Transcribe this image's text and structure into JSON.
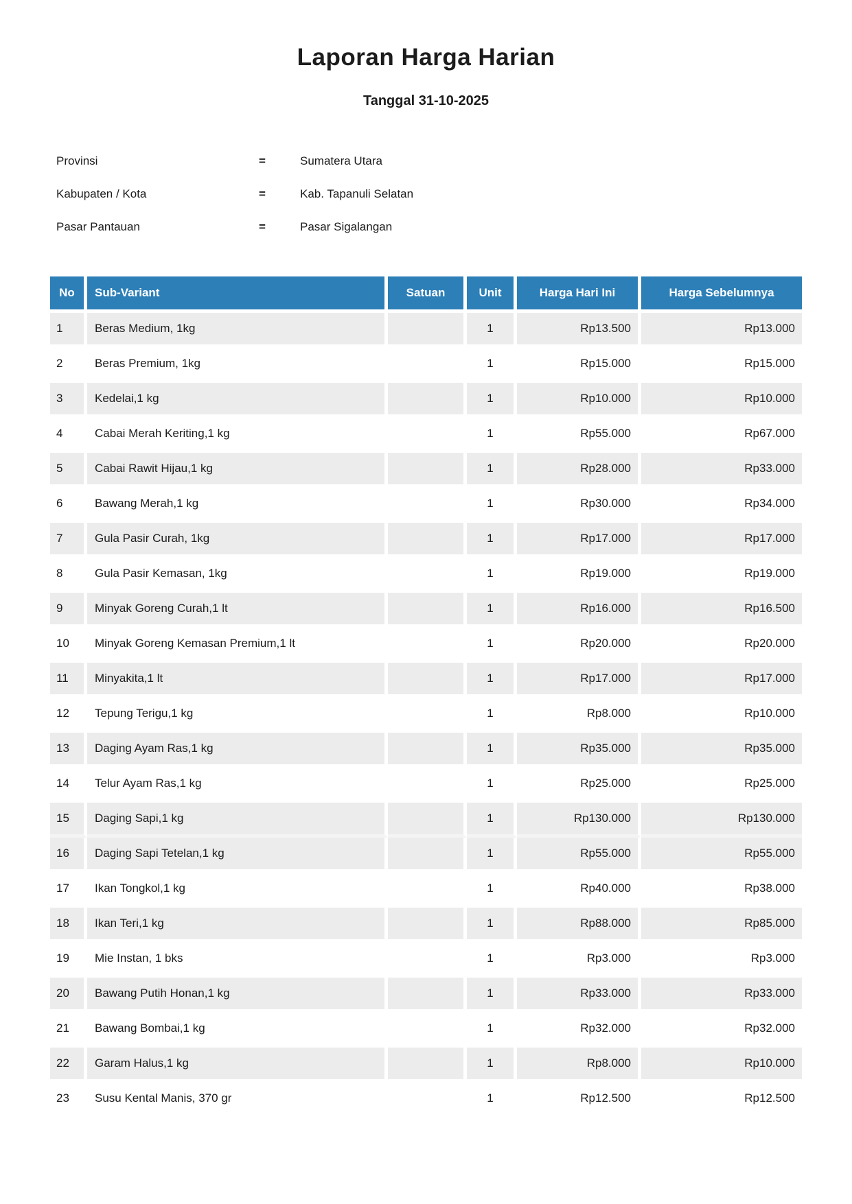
{
  "page": {
    "title": "Laporan Harga Harian",
    "subtitle": "Tanggal 31-10-2025"
  },
  "meta": {
    "separator": "=",
    "rows": [
      {
        "label": "Provinsi",
        "value": "Sumatera Utara"
      },
      {
        "label": "Kabupaten / Kota",
        "value": "Kab. Tapanuli Selatan"
      },
      {
        "label": "Pasar Pantauan",
        "value": "Pasar Sigalangan"
      }
    ]
  },
  "colors": {
    "header_bg": "#2d7fb8",
    "row_shade": "#ececec",
    "header_text": "#ffffff"
  },
  "table": {
    "columns": [
      "No",
      "Sub-Variant",
      "Satuan",
      "Unit",
      "Harga Hari Ini",
      "Harga Sebelumnya"
    ],
    "rows": [
      {
        "no": "1",
        "sub_variant": "Beras Medium, 1kg",
        "satuan": "",
        "unit": "1",
        "harga_hari_ini": "Rp13.500",
        "harga_sebelumnya": "Rp13.000",
        "shaded": true
      },
      {
        "no": "2",
        "sub_variant": "Beras Premium, 1kg",
        "satuan": "",
        "unit": "1",
        "harga_hari_ini": "Rp15.000",
        "harga_sebelumnya": "Rp15.000",
        "shaded": false
      },
      {
        "no": "3",
        "sub_variant": "Kedelai,1 kg",
        "satuan": "",
        "unit": "1",
        "harga_hari_ini": "Rp10.000",
        "harga_sebelumnya": "Rp10.000",
        "shaded": true
      },
      {
        "no": "4",
        "sub_variant": "Cabai Merah Keriting,1 kg",
        "satuan": "",
        "unit": "1",
        "harga_hari_ini": "Rp55.000",
        "harga_sebelumnya": "Rp67.000",
        "shaded": false
      },
      {
        "no": "5",
        "sub_variant": "Cabai Rawit Hijau,1 kg",
        "satuan": "",
        "unit": "1",
        "harga_hari_ini": "Rp28.000",
        "harga_sebelumnya": "Rp33.000",
        "shaded": true
      },
      {
        "no": "6",
        "sub_variant": "Bawang Merah,1 kg",
        "satuan": "",
        "unit": "1",
        "harga_hari_ini": "Rp30.000",
        "harga_sebelumnya": "Rp34.000",
        "shaded": false
      },
      {
        "no": "7",
        "sub_variant": "Gula Pasir Curah, 1kg",
        "satuan": "",
        "unit": "1",
        "harga_hari_ini": "Rp17.000",
        "harga_sebelumnya": "Rp17.000",
        "shaded": true
      },
      {
        "no": "8",
        "sub_variant": "Gula Pasir Kemasan, 1kg",
        "satuan": "",
        "unit": "1",
        "harga_hari_ini": "Rp19.000",
        "harga_sebelumnya": "Rp19.000",
        "shaded": false
      },
      {
        "no": "9",
        "sub_variant": "Minyak Goreng Curah,1 lt",
        "satuan": "",
        "unit": "1",
        "harga_hari_ini": "Rp16.000",
        "harga_sebelumnya": "Rp16.500",
        "shaded": true
      },
      {
        "no": "10",
        "sub_variant": "Minyak Goreng Kemasan Premium,1 lt",
        "satuan": "",
        "unit": "1",
        "harga_hari_ini": "Rp20.000",
        "harga_sebelumnya": "Rp20.000",
        "shaded": false
      },
      {
        "no": "11",
        "sub_variant": "Minyakita,1 lt",
        "satuan": "",
        "unit": "1",
        "harga_hari_ini": "Rp17.000",
        "harga_sebelumnya": "Rp17.000",
        "shaded": true
      },
      {
        "no": "12",
        "sub_variant": "Tepung Terigu,1 kg",
        "satuan": "",
        "unit": "1",
        "harga_hari_ini": "Rp8.000",
        "harga_sebelumnya": "Rp10.000",
        "shaded": false
      },
      {
        "no": "13",
        "sub_variant": "Daging Ayam Ras,1 kg",
        "satuan": "",
        "unit": "1",
        "harga_hari_ini": "Rp35.000",
        "harga_sebelumnya": "Rp35.000",
        "shaded": true
      },
      {
        "no": "14",
        "sub_variant": "Telur Ayam Ras,1 kg",
        "satuan": "",
        "unit": "1",
        "harga_hari_ini": "Rp25.000",
        "harga_sebelumnya": "Rp25.000",
        "shaded": false
      },
      {
        "no": "15",
        "sub_variant": "Daging Sapi,1 kg",
        "satuan": "",
        "unit": "1",
        "harga_hari_ini": "Rp130.000",
        "harga_sebelumnya": "Rp130.000",
        "shaded": true
      },
      {
        "no": "16",
        "sub_variant": "Daging Sapi Tetelan,1 kg",
        "satuan": "",
        "unit": "1",
        "harga_hari_ini": "Rp55.000",
        "harga_sebelumnya": "Rp55.000",
        "shaded": true
      },
      {
        "no": "17",
        "sub_variant": "Ikan Tongkol,1 kg",
        "satuan": "",
        "unit": "1",
        "harga_hari_ini": "Rp40.000",
        "harga_sebelumnya": "Rp38.000",
        "shaded": false
      },
      {
        "no": "18",
        "sub_variant": "Ikan Teri,1 kg",
        "satuan": "",
        "unit": "1",
        "harga_hari_ini": "Rp88.000",
        "harga_sebelumnya": "Rp85.000",
        "shaded": true
      },
      {
        "no": "19",
        "sub_variant": "Mie Instan, 1 bks",
        "satuan": "",
        "unit": "1",
        "harga_hari_ini": "Rp3.000",
        "harga_sebelumnya": "Rp3.000",
        "shaded": false
      },
      {
        "no": "20",
        "sub_variant": "Bawang Putih Honan,1 kg",
        "satuan": "",
        "unit": "1",
        "harga_hari_ini": "Rp33.000",
        "harga_sebelumnya": "Rp33.000",
        "shaded": true
      },
      {
        "no": "21",
        "sub_variant": "Bawang Bombai,1 kg",
        "satuan": "",
        "unit": "1",
        "harga_hari_ini": "Rp32.000",
        "harga_sebelumnya": "Rp32.000",
        "shaded": false
      },
      {
        "no": "22",
        "sub_variant": "Garam Halus,1 kg",
        "satuan": "",
        "unit": "1",
        "harga_hari_ini": "Rp8.000",
        "harga_sebelumnya": "Rp10.000",
        "shaded": true
      },
      {
        "no": "23",
        "sub_variant": "Susu Kental Manis, 370 gr",
        "satuan": "",
        "unit": "1",
        "harga_hari_ini": "Rp12.500",
        "harga_sebelumnya": "Rp12.500",
        "shaded": false
      }
    ]
  }
}
